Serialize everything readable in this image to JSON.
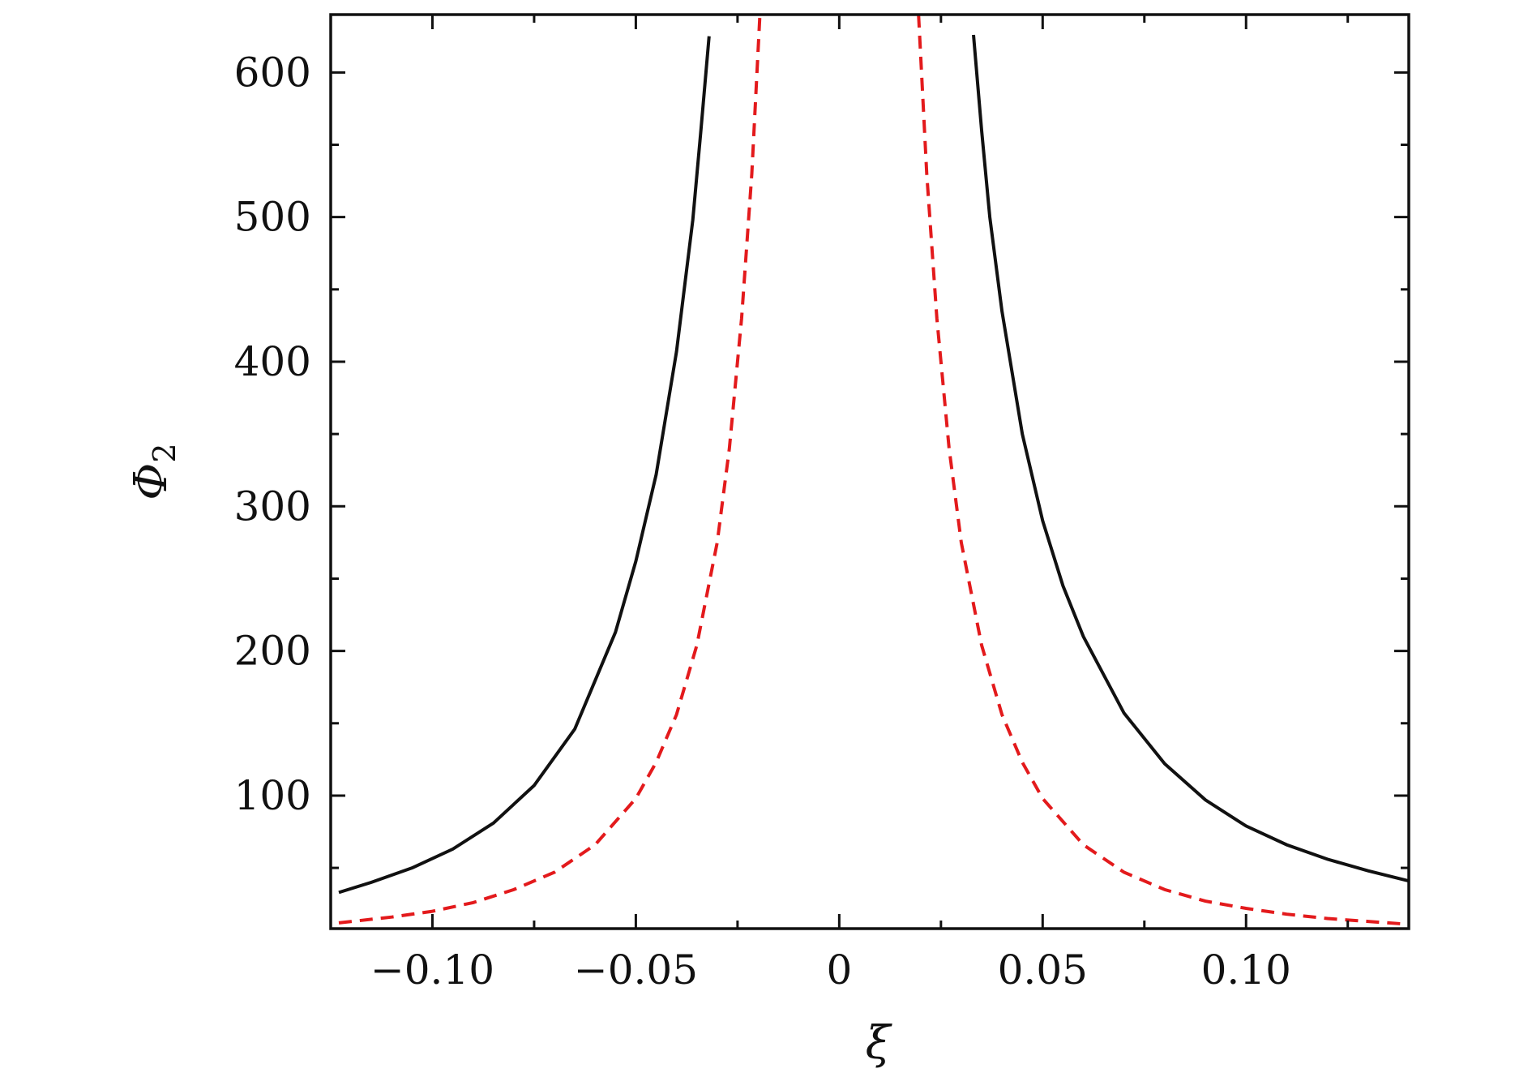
{
  "chart_data": {
    "type": "line",
    "xlabel": "ξ",
    "ylabel": "Φ",
    "ylabel_subscript": "2",
    "xlim": [
      -0.125,
      0.14
    ],
    "ylim": [
      8,
      640
    ],
    "x_ticks": [
      {
        "value": -0.1,
        "label": "−0.10"
      },
      {
        "value": -0.05,
        "label": "−0.05"
      },
      {
        "value": 0,
        "label": "0"
      },
      {
        "value": 0.05,
        "label": "0.05"
      },
      {
        "value": 0.1,
        "label": "0.10"
      }
    ],
    "x_minor_ticks": [
      -0.075,
      -0.025,
      0.025,
      0.075,
      0.125
    ],
    "y_ticks": [
      {
        "value": 100,
        "label": "100"
      },
      {
        "value": 200,
        "label": "200"
      },
      {
        "value": 300,
        "label": "300"
      },
      {
        "value": 400,
        "label": "400"
      },
      {
        "value": 500,
        "label": "500"
      },
      {
        "value": 600,
        "label": "600"
      }
    ],
    "y_minor_ticks": [
      50,
      150,
      250,
      350,
      450,
      550
    ],
    "grid": false,
    "legend": "none",
    "series": [
      {
        "style": "solid",
        "color": "#111111",
        "segments": [
          {
            "x": [
              -0.123,
              -0.115,
              -0.105,
              -0.095,
              -0.085,
              -0.075,
              -0.065,
              -0.055,
              -0.05,
              -0.045,
              -0.04,
              -0.036,
              -0.034,
              -0.032
            ],
            "y": [
              33,
              40,
              50,
              63,
              81,
              107,
              146,
              213,
              262,
              322,
              407,
              498,
              560,
              625
            ]
          },
          {
            "x": [
              0.033,
              0.035,
              0.037,
              0.04,
              0.045,
              0.05,
              0.055,
              0.06,
              0.07,
              0.08,
              0.09,
              0.1,
              0.11,
              0.12,
              0.13,
              0.14
            ],
            "y": [
              626,
              560,
              500,
              435,
              350,
              290,
              245,
              210,
              157,
              122,
              97,
              79,
              66,
              56,
              48,
              41
            ]
          }
        ]
      },
      {
        "style": "dashed",
        "color": "#e31a1c",
        "segments": [
          {
            "x": [
              -0.123,
              -0.11,
              -0.1,
              -0.09,
              -0.08,
              -0.07,
              -0.06,
              -0.05,
              -0.045,
              -0.04,
              -0.035,
              -0.03,
              -0.027,
              -0.024,
              -0.0215,
              -0.0195
            ],
            "y": [
              12,
              16,
              20,
              26,
              35,
              47,
              66,
              98,
              123,
              156,
              204,
              275,
              340,
              430,
              530,
              640
            ]
          },
          {
            "x": [
              0.0195,
              0.0215,
              0.024,
              0.027,
              0.03,
              0.035,
              0.04,
              0.045,
              0.05,
              0.06,
              0.07,
              0.08,
              0.09,
              0.1,
              0.11,
              0.12,
              0.13,
              0.14
            ],
            "y": [
              640,
              530,
              430,
              340,
              275,
              204,
              156,
              123,
              98,
              66,
              47,
              35,
              27,
              22,
              18,
              15,
              13,
              11
            ]
          }
        ]
      }
    ]
  }
}
